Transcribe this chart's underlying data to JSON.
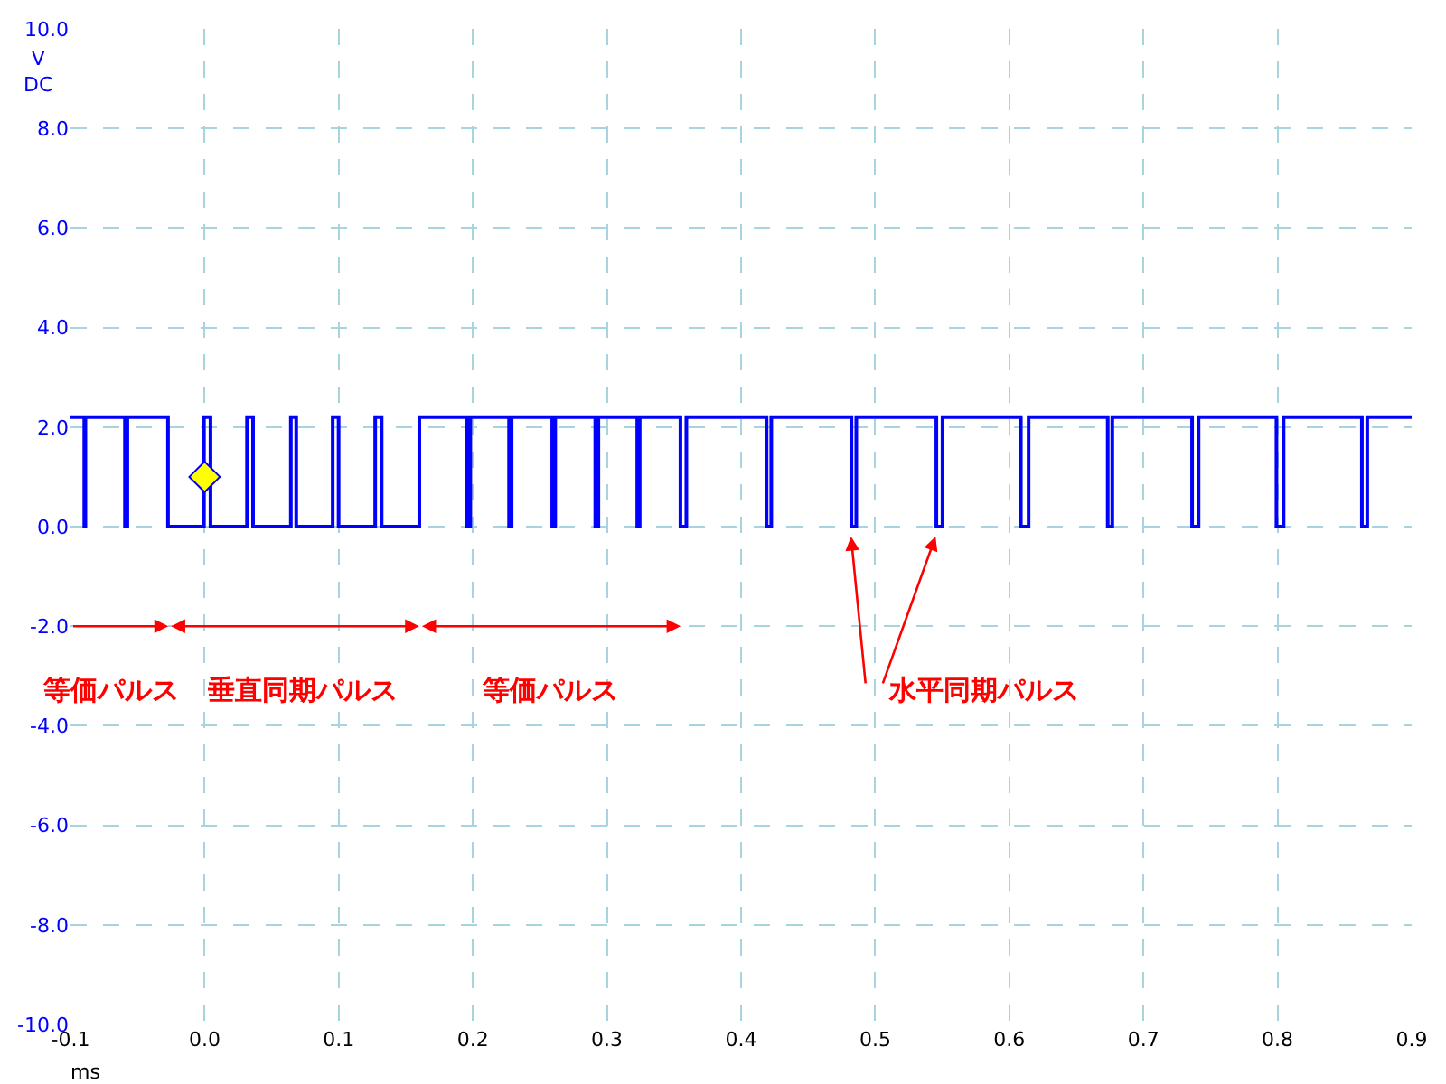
{
  "chart_data": {
    "type": "step",
    "xlabel": "ms",
    "ylabel": "V\nDC",
    "xlim": [
      -0.1,
      0.9
    ],
    "ylim": [
      -10,
      10
    ],
    "xticks": [
      {
        "value": -0.1,
        "label": "-0.1"
      },
      {
        "value": 0,
        "label": "0.0"
      },
      0.1,
      0.2,
      0.3,
      0.4,
      0.5,
      0.6,
      0.7,
      0.8,
      0.9
    ],
    "yticks": [
      {
        "value": -10,
        "label": "-10.0"
      },
      {
        "value": -8,
        "label": "-8.0"
      },
      {
        "value": -6,
        "label": "-6.0"
      },
      {
        "value": -4,
        "label": "-4.0"
      },
      {
        "value": -2,
        "label": "-2.0"
      },
      {
        "value": 0,
        "label": "0.0"
      },
      {
        "value": 2,
        "label": "2.0"
      },
      {
        "value": 4,
        "label": "4.0"
      },
      {
        "value": 6,
        "label": "6.0"
      },
      {
        "value": 8,
        "label": "8.0"
      },
      {
        "value": 10,
        "label": "10.0"
      }
    ],
    "grid": true,
    "line_style": "solid",
    "series": [
      {
        "color": "#0000ff",
        "x": [
          -0.1,
          -0.0897,
          -0.0889,
          -0.0594,
          -0.0576,
          -0.0273,
          -0.0005,
          0.0044,
          0.0316,
          0.0361,
          0.0643,
          0.0683,
          0.0955,
          0.0999,
          0.1272,
          0.132,
          0.1601,
          0.1954,
          0.1981,
          0.227,
          0.2289,
          0.2592,
          0.2614,
          0.2913,
          0.2936,
          0.3226,
          0.3244,
          0.3548,
          0.3592,
          0.419,
          0.4225,
          0.4823,
          0.4859,
          0.5456,
          0.5502,
          0.6086,
          0.6144,
          0.6734,
          0.6768,
          0.7363,
          0.7411,
          0.7992,
          0.8045,
          0.8629,
          0.8669,
          0.9
        ],
        "values": [
          2.2,
          0,
          2.2,
          0,
          2.2,
          0,
          2.2,
          0,
          2.2,
          0,
          2.2,
          0,
          2.2,
          0,
          2.2,
          0,
          2.2,
          0,
          2.2,
          0,
          2.2,
          0,
          2.2,
          0,
          2.2,
          0,
          2.2,
          0,
          2.2,
          0,
          2.2,
          0,
          2.2,
          0,
          2.2,
          0,
          2.2,
          0,
          2.2,
          0,
          2.2,
          0,
          2.2,
          0,
          2.2,
          2.2
        ]
      },
      {
        "type": "scatter",
        "color": "#ffff00",
        "marker": "diamond",
        "x": [
          0
        ],
        "values": [
          1.0
        ]
      }
    ],
    "annotations": [
      "等価パルス",
      "垂直同期パルス",
      "等価パルス",
      "水平同期パルス"
    ]
  }
}
